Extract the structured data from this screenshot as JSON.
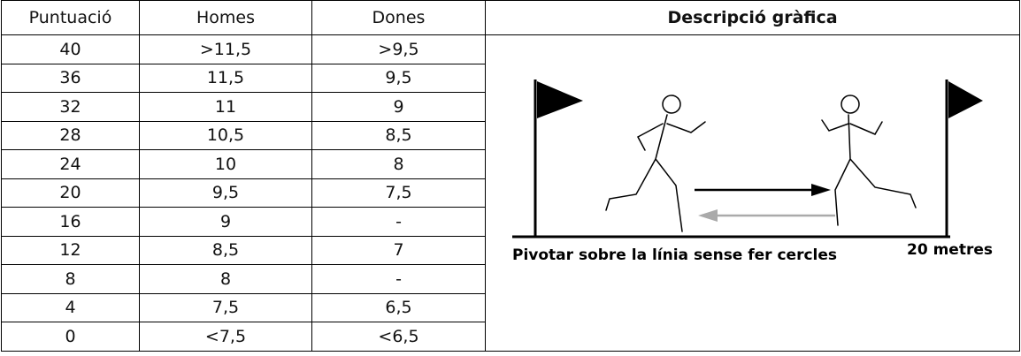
{
  "table": {
    "header": [
      "Puntuació",
      "Homes",
      "Dones",
      "Descripció gràfica"
    ],
    "rows": [
      [
        "40",
        ">11,5",
        ">9,5"
      ],
      [
        "36",
        "11,5",
        "9,5"
      ],
      [
        "32",
        "11",
        "9"
      ],
      [
        "28",
        "10,5",
        "8,5"
      ],
      [
        "24",
        "10",
        "8"
      ],
      [
        "20",
        "9,5",
        "7,5"
      ],
      [
        "16",
        "9",
        "-"
      ],
      [
        "12",
        "8,5",
        "7"
      ],
      [
        "8",
        "8",
        "-"
      ],
      [
        "4",
        "7,5",
        "6,5"
      ],
      [
        "0",
        "<7,5",
        "<6,5"
      ]
    ]
  },
  "figure": {
    "caption": "Pivotar sobre la línia sense fer cercles",
    "distance": "20 metres"
  }
}
